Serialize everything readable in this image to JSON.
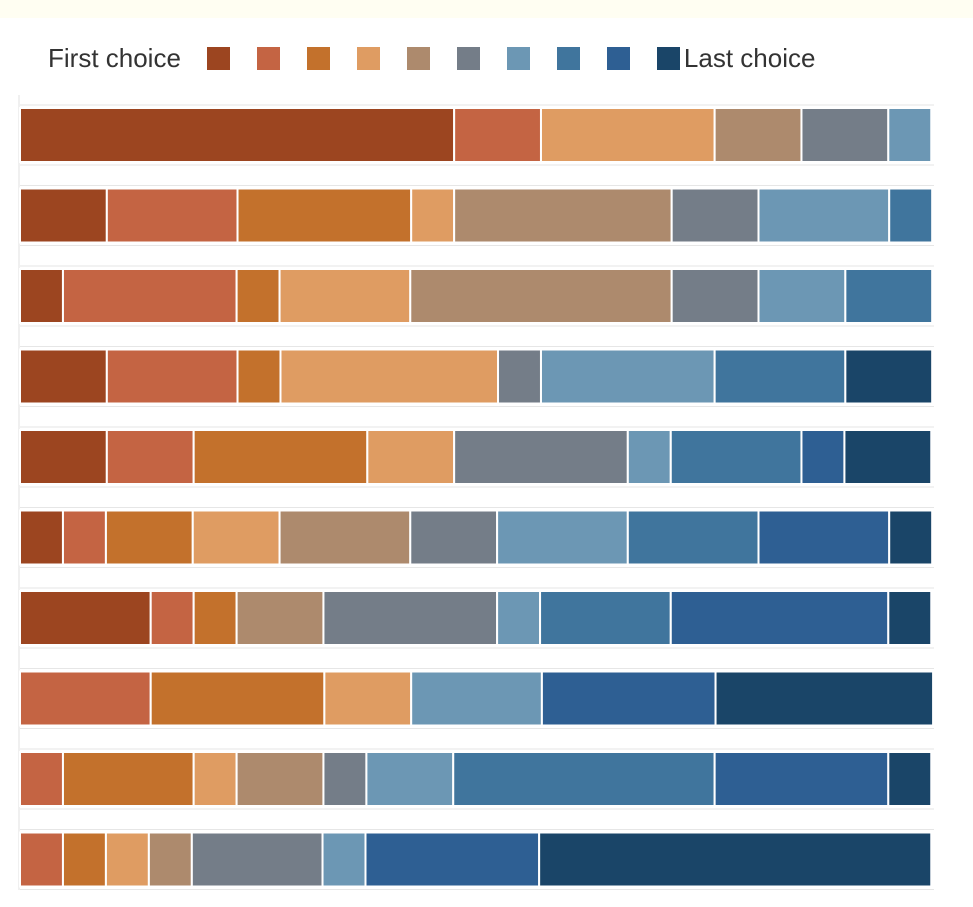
{
  "legend": {
    "first_label": "First choice",
    "last_label": "Last choice",
    "colors": [
      "#9c4520",
      "#c46443",
      "#c3712c",
      "#df9c62",
      "#ad8a6d",
      "#747d88",
      "#6c97b4",
      "#40759d",
      "#2e5f93",
      "#1a4568"
    ]
  },
  "chart_data": {
    "type": "bar",
    "orientation": "horizontal",
    "stacked": true,
    "normalized": true,
    "xlim": [
      0,
      100
    ],
    "grid": false,
    "legend_position": "top",
    "categories": [
      "",
      "",
      "",
      "",
      "",
      "",
      "",
      "",
      "",
      ""
    ],
    "series": [
      {
        "name": "First choice",
        "color": "#9c4520",
        "values": [
          47.5,
          9.5,
          4.7,
          9.5,
          9.5,
          4.7,
          14.3,
          0,
          0,
          0
        ]
      },
      {
        "color": "#c46443",
        "values": [
          9.5,
          14.3,
          19.0,
          14.3,
          9.5,
          4.7,
          4.7,
          14.3,
          4.7,
          4.7
        ]
      },
      {
        "color": "#c3712c",
        "values": [
          0,
          19.0,
          4.7,
          4.7,
          19.0,
          9.5,
          4.7,
          19.0,
          14.3,
          4.7
        ]
      },
      {
        "color": "#df9c62",
        "values": [
          19.0,
          4.7,
          14.3,
          23.8,
          9.5,
          9.5,
          0,
          9.5,
          4.7,
          4.7
        ]
      },
      {
        "color": "#ad8a6d",
        "values": [
          9.5,
          23.8,
          28.6,
          0,
          0,
          14.3,
          9.5,
          0,
          9.5,
          4.7
        ]
      },
      {
        "color": "#747d88",
        "values": [
          9.5,
          9.5,
          9.5,
          4.7,
          19.0,
          9.5,
          19.0,
          0,
          4.7,
          14.3
        ]
      },
      {
        "color": "#6c97b4",
        "values": [
          4.7,
          14.3,
          9.5,
          19.0,
          4.7,
          14.3,
          4.7,
          14.3,
          9.5,
          4.7
        ]
      },
      {
        "color": "#40759d",
        "values": [
          0,
          4.7,
          9.5,
          14.3,
          14.3,
          14.3,
          14.3,
          0,
          28.6,
          0
        ]
      },
      {
        "color": "#2e5f93",
        "values": [
          0,
          0,
          0,
          0,
          4.7,
          14.3,
          23.8,
          19.0,
          19.0,
          19.0
        ]
      },
      {
        "name": "Last choice",
        "color": "#1a4568",
        "values": [
          0,
          0,
          0,
          9.5,
          9.5,
          4.7,
          4.7,
          23.8,
          4.7,
          42.9
        ]
      }
    ]
  }
}
